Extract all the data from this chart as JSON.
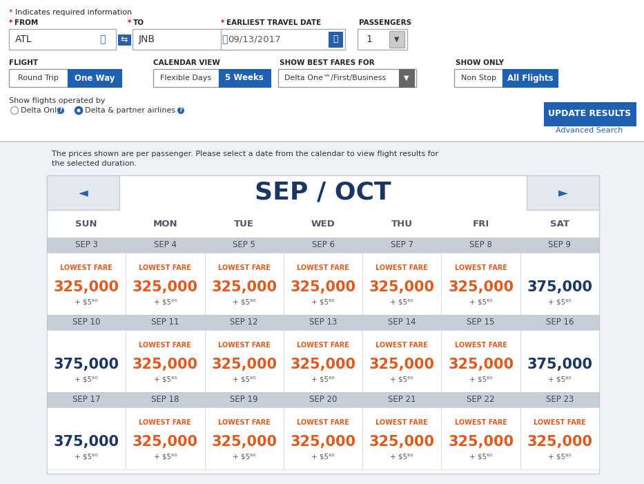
{
  "bg_color": "#eef1f5",
  "white": "#ffffff",
  "dark_blue": "#1a3566",
  "medium_blue": "#2a5fac",
  "orange": "#e05a1e",
  "blue_btn": "#2060b0",
  "nav_arrow_color": "#2a5fac",
  "required_star": "#cc0000",
  "month_title": "SEP / OCT",
  "days": [
    "SUN",
    "MON",
    "TUE",
    "WED",
    "THU",
    "FRI",
    "SAT"
  ],
  "weeks": [
    {
      "dates": [
        "SEP 3",
        "SEP 4",
        "SEP 5",
        "SEP 6",
        "SEP 7",
        "SEP 8",
        "SEP 9"
      ],
      "fares": [
        {
          "lowest": true,
          "miles": "325,000",
          "fee": "+ $5⁶⁰"
        },
        {
          "lowest": true,
          "miles": "325,000",
          "fee": "+ $5⁶⁰"
        },
        {
          "lowest": true,
          "miles": "325,000",
          "fee": "+ $5⁶⁰"
        },
        {
          "lowest": true,
          "miles": "325,000",
          "fee": "+ $5⁶⁰"
        },
        {
          "lowest": true,
          "miles": "325,000",
          "fee": "+ $5⁶⁰"
        },
        {
          "lowest": true,
          "miles": "325,000",
          "fee": "+ $5⁶⁰"
        },
        {
          "lowest": false,
          "miles": "375,000",
          "fee": "+ $5⁶⁰"
        }
      ]
    },
    {
      "dates": [
        "SEP 10",
        "SEP 11",
        "SEP 12",
        "SEP 13",
        "SEP 14",
        "SEP 15",
        "SEP 16"
      ],
      "fares": [
        {
          "lowest": false,
          "miles": "375,000",
          "fee": "+ $5⁶⁰"
        },
        {
          "lowest": true,
          "miles": "325,000",
          "fee": "+ $5⁶⁰"
        },
        {
          "lowest": true,
          "miles": "325,000",
          "fee": "+ $5⁶⁰"
        },
        {
          "lowest": true,
          "miles": "325,000",
          "fee": "+ $5⁶⁰"
        },
        {
          "lowest": true,
          "miles": "325,000",
          "fee": "+ $5⁶⁰"
        },
        {
          "lowest": true,
          "miles": "325,000",
          "fee": "+ $5⁶⁰"
        },
        {
          "lowest": false,
          "miles": "375,000",
          "fee": "+ $5⁶⁰"
        }
      ]
    },
    {
      "dates": [
        "SEP 17",
        "SEP 18",
        "SEP 19",
        "SEP 20",
        "SEP 21",
        "SEP 22",
        "SEP 23"
      ],
      "fares": [
        {
          "lowest": false,
          "miles": "375,000",
          "fee": "+ $5⁶⁰"
        },
        {
          "lowest": true,
          "miles": "325,000",
          "fee": "+ $5⁶⁰"
        },
        {
          "lowest": true,
          "miles": "325,000",
          "fee": "+ $5⁶⁰"
        },
        {
          "lowest": true,
          "miles": "325,000",
          "fee": "+ $5⁶⁰"
        },
        {
          "lowest": true,
          "miles": "325,000",
          "fee": "+ $5⁶⁰"
        },
        {
          "lowest": true,
          "miles": "325,000",
          "fee": "+ $5⁶⁰"
        },
        {
          "lowest": true,
          "miles": "325,000",
          "fee": "+ $5⁶⁰"
        }
      ]
    }
  ]
}
